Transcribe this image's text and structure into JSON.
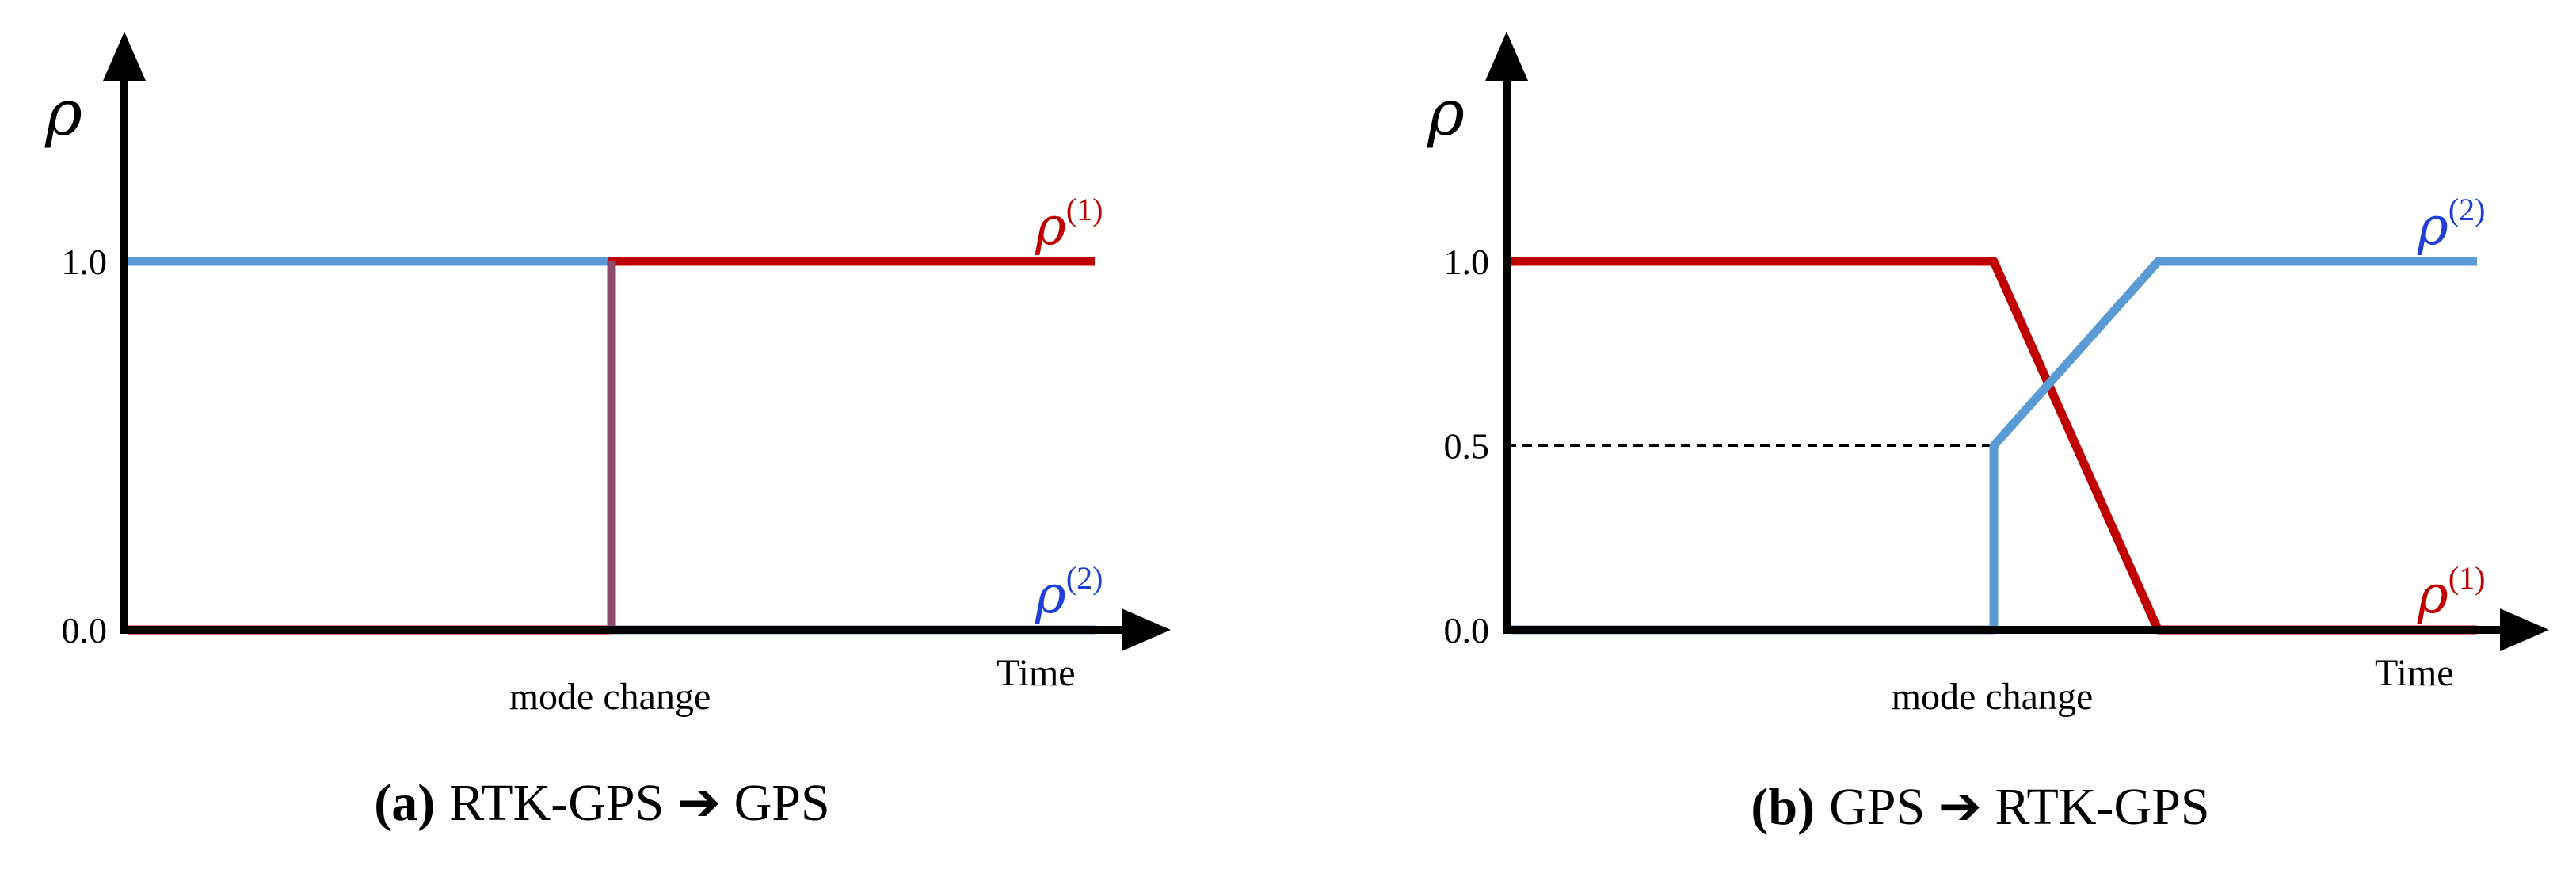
{
  "chart_data": [
    {
      "type": "line",
      "panel": "a",
      "caption_letter": "(a)",
      "caption_text": "RTK-GPS ➔ GPS",
      "ylabel": "ρ",
      "xlabel": "Time",
      "annotation": "mode change",
      "y_ticks": [
        "1.0",
        "0.0"
      ],
      "y_tick_values": [
        1.0,
        0.0
      ],
      "x": [
        0,
        0.5,
        1
      ],
      "series": [
        {
          "label_base": "ρ",
          "label_sup": "(1)",
          "color": "#c00000",
          "x": [
            0,
            0.5,
            0.5,
            1
          ],
          "y": [
            0,
            0,
            1,
            1
          ]
        },
        {
          "label_base": "ρ",
          "label_sup": "(2)",
          "color": "#5b9bd5",
          "x": [
            0,
            0.5,
            0.5,
            1
          ],
          "y": [
            1,
            1,
            0,
            0
          ]
        }
      ]
    },
    {
      "type": "line",
      "panel": "b",
      "caption_letter": "(b)",
      "caption_text": "GPS ➔ RTK-GPS",
      "ylabel": "ρ",
      "xlabel": "Time",
      "annotation": "mode change",
      "y_ticks": [
        "1.0",
        "0.5",
        "0.0"
      ],
      "y_tick_values": [
        1.0,
        0.5,
        0.0
      ],
      "series": [
        {
          "label_base": "ρ",
          "label_sup": "(1)",
          "color": "#c00000",
          "x": [
            0,
            0.5,
            0.67,
            1
          ],
          "y": [
            1,
            1,
            0,
            0
          ]
        },
        {
          "label_base": "ρ",
          "label_sup": "(2)",
          "color": "#5b9bd5",
          "x": [
            0,
            0.5,
            0.5,
            0.67,
            1
          ],
          "y": [
            0,
            0,
            0.5,
            1,
            1
          ]
        }
      ]
    }
  ]
}
